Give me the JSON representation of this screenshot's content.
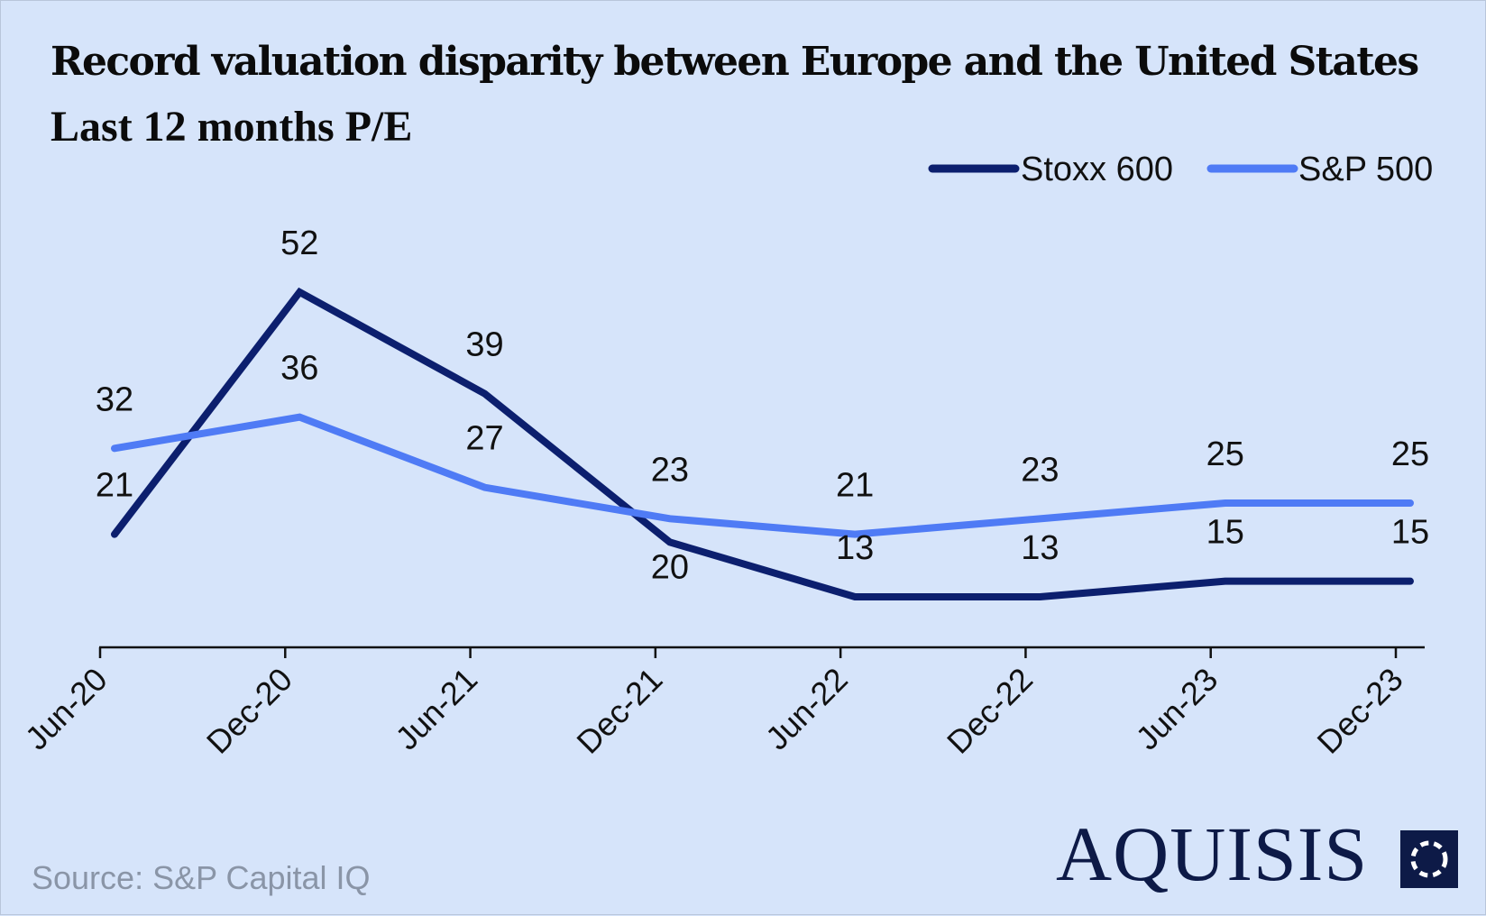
{
  "title": "Record valuation disparity between Europe and the United States",
  "subtitle": "Last 12 months P/E",
  "source": "Source: S&P Capital IQ",
  "brand": "AQUISIS",
  "logo_icon": "square-dotted-circle-icon",
  "colors": {
    "background": "#d6e4fa",
    "stoxx": "#0c1f6e",
    "sp": "#4f7bf5",
    "axis": "#111111",
    "text": "#111111"
  },
  "chart_data": {
    "type": "line",
    "title": "Record valuation disparity between Europe and the United States",
    "subtitle": "Last 12 months P/E",
    "categories": [
      "Jun-20",
      "Dec-20",
      "Jun-21",
      "Dec-21",
      "Jun-22",
      "Dec-22",
      "Jun-23",
      "Dec-23"
    ],
    "series": [
      {
        "name": "Stoxx 600",
        "values": [
          21,
          52,
          39,
          20,
          13,
          13,
          15,
          15
        ],
        "label_position": "above"
      },
      {
        "name": "S&P 500",
        "values": [
          32,
          36,
          27,
          23,
          21,
          23,
          25,
          25
        ],
        "label_position": "above"
      }
    ],
    "point_labels": {
      "Stoxx 600": [
        "21",
        "52",
        "39",
        "20",
        "13",
        "13",
        "15",
        "15"
      ],
      "S&P 500": [
        "32",
        "36",
        "27",
        "23",
        "21",
        "23",
        "25",
        "25"
      ]
    },
    "xlabel": "",
    "ylabel": "",
    "ylim": [
      10,
      55
    ],
    "grid": false,
    "legend": "top-right",
    "legend_entries": [
      "Stoxx 600",
      "S&P 500"
    ]
  }
}
